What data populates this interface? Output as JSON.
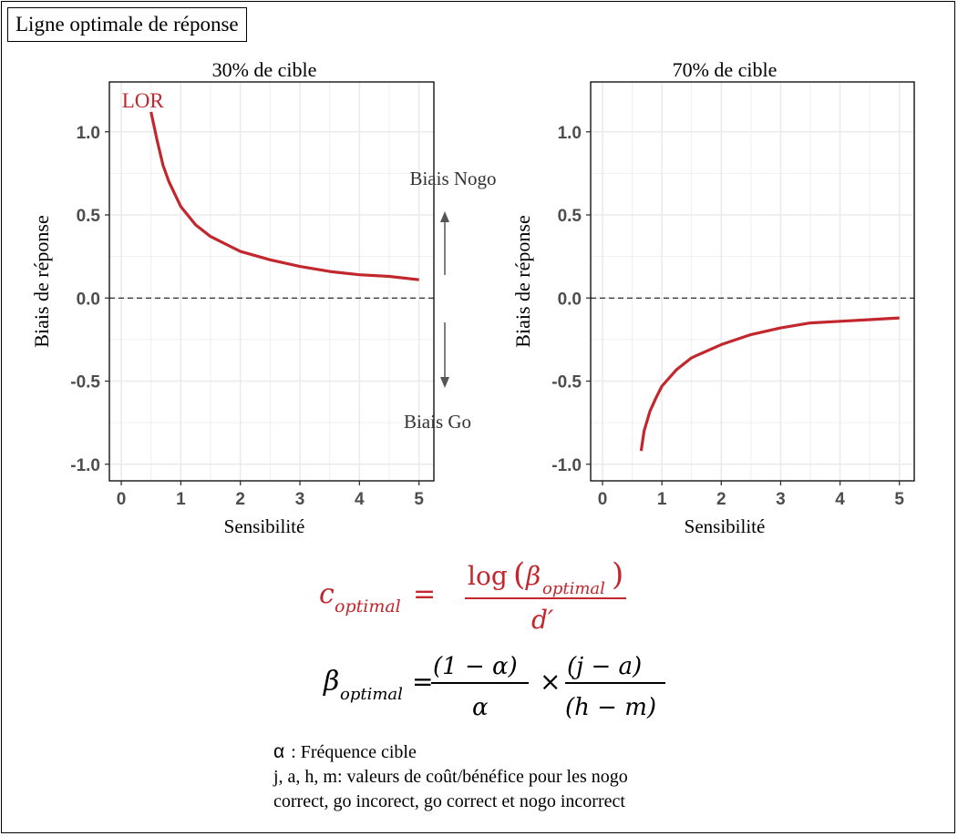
{
  "title": "Ligne optimale de réponse",
  "chart_data": [
    {
      "type": "line",
      "title": "30% de cible",
      "xlabel": "Sensibilité",
      "ylabel": "Biais de réponse",
      "xlim": [
        -0.2,
        5.25
      ],
      "ylim": [
        -1.1,
        1.3
      ],
      "xticks": [
        "0",
        "1",
        "2",
        "3",
        "4",
        "5"
      ],
      "yticks": [
        "1.0",
        "0.5",
        "0.0",
        "-0.5",
        "-1.0"
      ],
      "grid": true,
      "series": [
        {
          "name": "LOR",
          "color": "#c1272d",
          "x": [
            0.5,
            0.6,
            0.7,
            0.8,
            1.0,
            1.25,
            1.5,
            2.0,
            2.5,
            3.0,
            3.5,
            4.0,
            4.5,
            5.0
          ],
          "y": [
            1.12,
            0.95,
            0.8,
            0.7,
            0.55,
            0.44,
            0.37,
            0.28,
            0.23,
            0.19,
            0.16,
            0.14,
            0.13,
            0.11
          ]
        }
      ],
      "reference_line": 0.0,
      "annotations": [
        "Biais Nogo",
        "Biais Go"
      ]
    },
    {
      "type": "line",
      "title": "70% de cible",
      "xlabel": "Sensibilité",
      "ylabel": "Biais de réponse",
      "xlim": [
        -0.2,
        5.25
      ],
      "ylim": [
        -1.1,
        1.3
      ],
      "xticks": [
        "0",
        "1",
        "2",
        "3",
        "4",
        "5"
      ],
      "yticks": [
        "1.0",
        "0.5",
        "0.0",
        "-0.5",
        "-1.0"
      ],
      "grid": true,
      "series": [
        {
          "color": "#c1272d",
          "x": [
            0.65,
            0.7,
            0.8,
            0.9,
            1.0,
            1.25,
            1.5,
            2.0,
            2.5,
            3.0,
            3.5,
            4.0,
            4.5,
            5.0
          ],
          "y": [
            -0.92,
            -0.8,
            -0.68,
            -0.6,
            -0.53,
            -0.43,
            -0.36,
            -0.28,
            -0.22,
            -0.18,
            -0.15,
            -0.14,
            -0.13,
            -0.12
          ]
        }
      ],
      "reference_line": 0.0
    }
  ],
  "formula": {
    "c_sym": "c",
    "c_sub": "optimal",
    "eq": "=",
    "log": "log",
    "beta": "β",
    "beta_sub": "optimal",
    "d_prime": "d′",
    "num1": "(1 − α)",
    "den1": "α",
    "times": "×",
    "num2": "(j − a)",
    "den2": "(h − m)"
  },
  "legend": {
    "alpha_sym": "α",
    "alpha_text": " : Fréquence cible",
    "line2": "j, a, h, m: valeurs de coût/bénéfice pour les nogo",
    "line3": "correct, go incorect, go correct et nogo incorrect"
  },
  "colors": {
    "curve": "#c1272d",
    "grid": "#ebebeb",
    "tick": "#4d4d4d"
  }
}
